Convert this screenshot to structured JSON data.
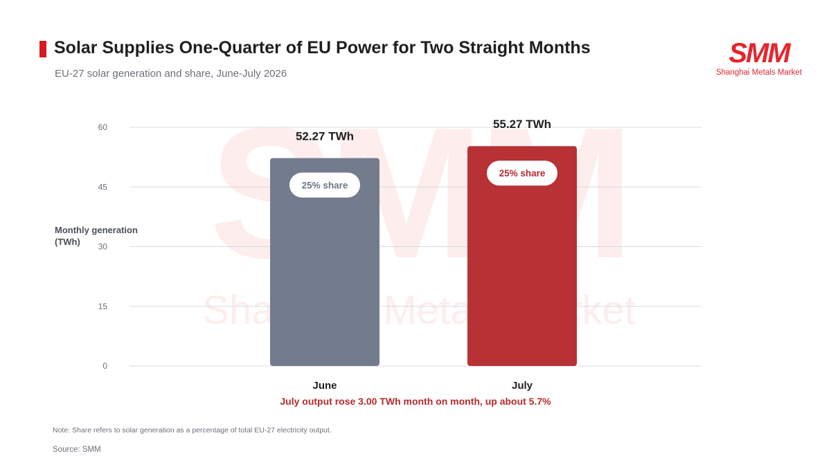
{
  "header": {
    "title": "Solar Supplies One-Quarter of EU Power for Two Straight Months",
    "subtitle": "EU-27 solar generation and share, June-July 2026"
  },
  "logo": {
    "mark": "SMM",
    "text": "Shanghai Metals Market",
    "color": "#e3262e"
  },
  "watermark": {
    "mark": "SMM",
    "text": "Shanghai Metals Market"
  },
  "chart_data": {
    "type": "bar",
    "categories": [
      "June",
      "July"
    ],
    "values": [
      52.27,
      55.27
    ],
    "value_labels": [
      "52.27 TWh",
      "55.27 TWh"
    ],
    "share_labels": [
      "25% share",
      "25% share"
    ],
    "colors": [
      "#6e7889",
      "#b52a2e"
    ],
    "share_text_colors": [
      "#6e7889",
      "#b52a2e"
    ],
    "ylabel": "Monthly generation (TWh)",
    "ylim": [
      0,
      60
    ],
    "yticks": [
      0,
      15,
      30,
      45,
      60
    ],
    "grid": true,
    "annotation": "July output rose 3.00 TWh month on month, up about 5.7%",
    "annotation_color": "#b52a2e"
  },
  "footer": {
    "note": "Note: Share refers to solar generation as a percentage of total EU-27 electricity output.",
    "source": "Source: SMM"
  }
}
